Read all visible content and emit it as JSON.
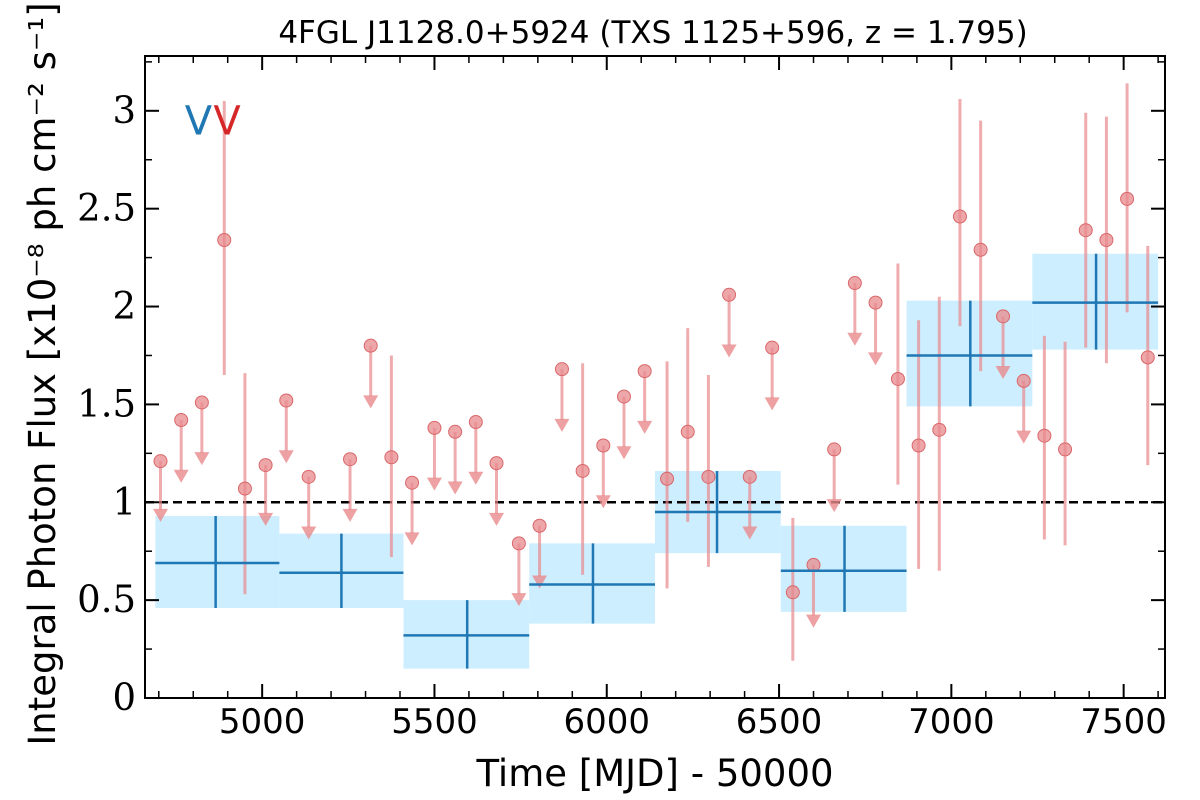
{
  "chart_data": {
    "type": "scatter",
    "title": "4FGL J1128.0+5924 (TXS 1125+596, z = 1.795)",
    "xlabel": "Time [MJD] - 50000",
    "ylabel": "Integral Photon Flux [x10⁻⁸ ph cm⁻² s⁻¹]",
    "xlim": [
      4660,
      7620
    ],
    "ylim": [
      0,
      3.28
    ],
    "xticks": [
      {
        "value": 5000,
        "label": "5000"
      },
      {
        "value": 5500,
        "label": "5500"
      },
      {
        "value": 6000,
        "label": "6000"
      },
      {
        "value": 6500,
        "label": "6500"
      },
      {
        "value": 7000,
        "label": "7000"
      },
      {
        "value": 7500,
        "label": "7500"
      }
    ],
    "yticks": [
      {
        "value": 0,
        "label": "0"
      },
      {
        "value": 0.5,
        "label": "0.5"
      },
      {
        "value": 1,
        "label": "1"
      },
      {
        "value": 1.5,
        "label": "1.5"
      },
      {
        "value": 2,
        "label": "2"
      },
      {
        "value": 2.5,
        "label": "2.5"
      },
      {
        "value": 3,
        "label": "3"
      }
    ],
    "reference_line": {
      "y": 1,
      "style": "dashed",
      "color": "#000000"
    },
    "markers": [
      {
        "text": "V",
        "x": 4815,
        "y": 2.95,
        "color": "#1f77b4"
      },
      {
        "text": "V",
        "x": 4898,
        "y": 2.95,
        "color": "#d62728"
      }
    ],
    "colors": {
      "binned": "#1f77b4",
      "binned_band": "#cdeeff",
      "short": "#e8898c",
      "reference": "#000000"
    },
    "series": [
      {
        "kind": "binned",
        "points": [
          {
            "x": 4865,
            "xlo": 4690,
            "xhi": 5050,
            "y": 0.69,
            "ylo": 0.46,
            "yhi": 0.93
          },
          {
            "x": 5230,
            "xlo": 5050,
            "xhi": 5410,
            "y": 0.64,
            "ylo": 0.46,
            "yhi": 0.84
          },
          {
            "x": 5595,
            "xlo": 5410,
            "xhi": 5775,
            "y": 0.32,
            "ylo": 0.15,
            "yhi": 0.5
          },
          {
            "x": 5960,
            "xlo": 5775,
            "xhi": 6140,
            "y": 0.58,
            "ylo": 0.38,
            "yhi": 0.79
          },
          {
            "x": 6320,
            "xlo": 6140,
            "xhi": 6505,
            "y": 0.95,
            "ylo": 0.74,
            "yhi": 1.16
          },
          {
            "x": 6690,
            "xlo": 6505,
            "xhi": 6870,
            "y": 0.65,
            "ylo": 0.44,
            "yhi": 0.88
          },
          {
            "x": 7055,
            "xlo": 6870,
            "xhi": 7235,
            "y": 1.75,
            "ylo": 1.49,
            "yhi": 2.03
          },
          {
            "x": 7420,
            "xlo": 7235,
            "xhi": 7600,
            "y": 2.02,
            "ylo": 1.78,
            "yhi": 2.27
          }
        ]
      },
      {
        "kind": "short",
        "detections": [
          {
            "x": 4890,
            "y": 2.34,
            "ylo": 1.65,
            "yhi": 3.05
          },
          {
            "x": 4950,
            "y": 1.07,
            "ylo": 0.53,
            "yhi": 1.66
          },
          {
            "x": 5375,
            "y": 1.23,
            "ylo": 0.72,
            "yhi": 1.75
          },
          {
            "x": 5930,
            "y": 1.16,
            "ylo": 0.63,
            "yhi": 1.71
          },
          {
            "x": 6175,
            "y": 1.12,
            "ylo": 0.56,
            "yhi": 1.72
          },
          {
            "x": 6235,
            "y": 1.36,
            "ylo": 0.9,
            "yhi": 1.89
          },
          {
            "x": 6295,
            "y": 1.13,
            "ylo": 0.67,
            "yhi": 1.65
          },
          {
            "x": 6540,
            "y": 0.54,
            "ylo": 0.19,
            "yhi": 0.92
          },
          {
            "x": 6845,
            "y": 1.63,
            "ylo": 1.09,
            "yhi": 2.22
          },
          {
            "x": 6905,
            "y": 1.29,
            "ylo": 0.66,
            "yhi": 1.93
          },
          {
            "x": 6965,
            "y": 1.37,
            "ylo": 0.65,
            "yhi": 2.05
          },
          {
            "x": 7025,
            "y": 2.46,
            "ylo": 1.9,
            "yhi": 3.06
          },
          {
            "x": 7085,
            "y": 2.29,
            "ylo": 1.67,
            "yhi": 2.95
          },
          {
            "x": 7270,
            "y": 1.34,
            "ylo": 0.81,
            "yhi": 1.85
          },
          {
            "x": 7330,
            "y": 1.27,
            "ylo": 0.78,
            "yhi": 1.82
          },
          {
            "x": 7390,
            "y": 2.39,
            "ylo": 1.79,
            "yhi": 2.99
          },
          {
            "x": 7450,
            "y": 2.34,
            "ylo": 1.71,
            "yhi": 2.97
          },
          {
            "x": 7510,
            "y": 2.55,
            "ylo": 1.97,
            "yhi": 3.14
          },
          {
            "x": 7570,
            "y": 1.74,
            "ylo": 1.19,
            "yhi": 2.31
          }
        ],
        "upper_limits": [
          {
            "x": 4705,
            "y": 1.21,
            "limit": 0.92
          },
          {
            "x": 4765,
            "y": 1.42,
            "limit": 1.12
          },
          {
            "x": 4825,
            "y": 1.51,
            "limit": 1.21
          },
          {
            "x": 5010,
            "y": 1.19,
            "limit": 0.9
          },
          {
            "x": 5070,
            "y": 1.52,
            "limit": 1.22
          },
          {
            "x": 5135,
            "y": 1.13,
            "limit": 0.83
          },
          {
            "x": 5255,
            "y": 1.22,
            "limit": 0.92
          },
          {
            "x": 5315,
            "y": 1.8,
            "limit": 1.5
          },
          {
            "x": 5435,
            "y": 1.1,
            "limit": 0.8
          },
          {
            "x": 5500,
            "y": 1.38,
            "limit": 1.08
          },
          {
            "x": 5560,
            "y": 1.36,
            "limit": 1.06
          },
          {
            "x": 5620,
            "y": 1.41,
            "limit": 1.11
          },
          {
            "x": 5680,
            "y": 1.2,
            "limit": 0.9
          },
          {
            "x": 5745,
            "y": 0.79,
            "limit": 0.49
          },
          {
            "x": 5805,
            "y": 0.88,
            "limit": 0.58
          },
          {
            "x": 5870,
            "y": 1.68,
            "limit": 1.38
          },
          {
            "x": 5990,
            "y": 1.29,
            "limit": 0.99
          },
          {
            "x": 6050,
            "y": 1.54,
            "limit": 1.24
          },
          {
            "x": 6110,
            "y": 1.67,
            "limit": 1.37
          },
          {
            "x": 6355,
            "y": 2.06,
            "limit": 1.76
          },
          {
            "x": 6415,
            "y": 1.13,
            "limit": 0.83
          },
          {
            "x": 6480,
            "y": 1.79,
            "limit": 1.49
          },
          {
            "x": 6600,
            "y": 0.68,
            "limit": 0.38
          },
          {
            "x": 6660,
            "y": 1.27,
            "limit": 0.97
          },
          {
            "x": 6720,
            "y": 2.12,
            "limit": 1.82
          },
          {
            "x": 6780,
            "y": 2.02,
            "limit": 1.72
          },
          {
            "x": 7150,
            "y": 1.95,
            "limit": 1.65
          },
          {
            "x": 7210,
            "y": 1.62,
            "limit": 1.32
          }
        ]
      }
    ]
  }
}
